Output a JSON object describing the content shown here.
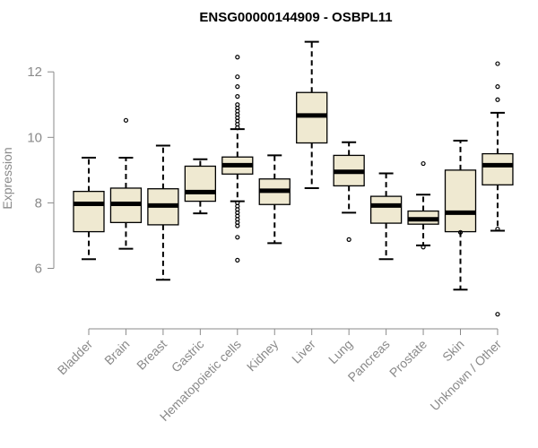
{
  "chart_data": {
    "type": "box",
    "title": "ENSG00000144909 - OSBPL11",
    "ylabel": "Expression",
    "xlabel": "",
    "ylim": [
      4.4,
      13.1
    ],
    "yticks": [
      6,
      8,
      10,
      12
    ],
    "grid": false,
    "colors": {
      "box_fill": "#efe9d1",
      "box_stroke": "#000000",
      "median": "#000000",
      "axis": "#8a8a8a"
    },
    "categories": [
      "Bladder",
      "Brain",
      "Breast",
      "Gastric",
      "Hematopoietic cells",
      "Kidney",
      "Liver",
      "Lung",
      "Pancreas",
      "Prostate",
      "Skin",
      "Unknown / Other"
    ],
    "boxes": [
      {
        "min": 6.28,
        "q1": 7.12,
        "median": 7.97,
        "q3": 8.35,
        "max": 9.38,
        "outliers": []
      },
      {
        "min": 6.6,
        "q1": 7.4,
        "median": 7.97,
        "q3": 8.45,
        "max": 9.38,
        "outliers": [
          10.52
        ]
      },
      {
        "min": 5.65,
        "q1": 7.33,
        "median": 7.92,
        "q3": 8.43,
        "max": 9.75,
        "outliers": []
      },
      {
        "min": 7.68,
        "q1": 8.05,
        "median": 8.33,
        "q3": 9.12,
        "max": 9.33,
        "outliers": []
      },
      {
        "min": 8.05,
        "q1": 8.88,
        "median": 9.15,
        "q3": 9.4,
        "max": 10.25,
        "outliers": [
          12.45,
          11.85,
          11.55,
          11.25,
          11.0,
          10.9,
          10.8,
          10.7,
          10.6,
          10.5,
          10.4,
          10.3,
          8.0,
          7.9,
          7.8,
          7.7,
          7.6,
          7.5,
          7.4,
          7.3,
          6.95,
          6.25
        ]
      },
      {
        "min": 6.77,
        "q1": 7.95,
        "median": 8.37,
        "q3": 8.73,
        "max": 9.45,
        "outliers": []
      },
      {
        "min": 8.45,
        "q1": 9.83,
        "median": 10.67,
        "q3": 11.37,
        "max": 12.92,
        "outliers": []
      },
      {
        "min": 7.7,
        "q1": 8.52,
        "median": 8.95,
        "q3": 9.45,
        "max": 9.85,
        "outliers": [
          6.88
        ]
      },
      {
        "min": 6.28,
        "q1": 7.38,
        "median": 7.92,
        "q3": 8.2,
        "max": 8.9,
        "outliers": []
      },
      {
        "min": 6.7,
        "q1": 7.35,
        "median": 7.5,
        "q3": 7.75,
        "max": 8.25,
        "outliers": [
          9.2,
          6.65
        ]
      },
      {
        "min": 5.35,
        "q1": 7.12,
        "median": 7.7,
        "q3": 9.0,
        "max": 9.9,
        "outliers": [
          7.1
        ]
      },
      {
        "min": 7.15,
        "q1": 8.55,
        "median": 9.15,
        "q3": 9.5,
        "max": 10.75,
        "outliers": [
          12.25,
          11.55,
          11.15,
          7.2,
          4.6
        ]
      }
    ]
  }
}
